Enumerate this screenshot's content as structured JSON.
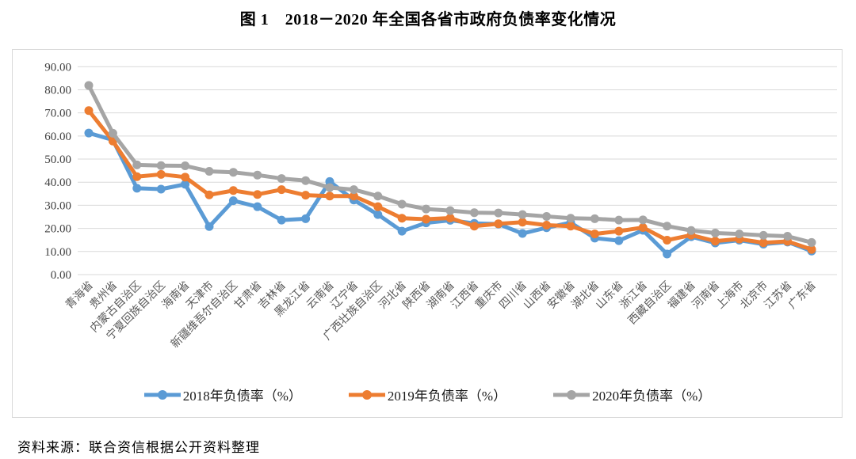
{
  "title": "图 1　2018－2020 年全国各省市政府负债率变化情况",
  "source_note": "资料来源：联合资信根据公开资料整理",
  "chart_data": {
    "type": "line",
    "title": "图 1　2018－2020 年全国各省市政府负债率变化情况",
    "xlabel": "",
    "ylabel": "",
    "ylim": [
      0,
      90
    ],
    "ytick_step": 10,
    "yticks": [
      90,
      80,
      70,
      60,
      50,
      40,
      30,
      20,
      10,
      0
    ],
    "ytick_labels": [
      "90.00",
      "80.00",
      "70.00",
      "60.00",
      "50.00",
      "40.00",
      "30.00",
      "20.00",
      "10.00",
      "0.00"
    ],
    "grid": "horizontal",
    "legend_position": "bottom",
    "marker": "circle",
    "categories": [
      "青海省",
      "贵州省",
      "内蒙古自治区",
      "宁夏回族自治区",
      "海南省",
      "天津市",
      "新疆维吾尔自治区",
      "甘肃省",
      "吉林省",
      "黑龙江省",
      "云南省",
      "辽宁省",
      "广西壮族自治区",
      "河北省",
      "陕西省",
      "湖南省",
      "江西省",
      "重庆市",
      "四川省",
      "山西省",
      "安徽省",
      "湖北省",
      "山东省",
      "浙江省",
      "西藏自治区",
      "福建省",
      "河南省",
      "上海市",
      "北京市",
      "江苏省",
      "广东省"
    ],
    "series": [
      {
        "name": "2018年负债率（%）",
        "color": "#5B9BD5",
        "values": [
          61.3,
          58.3,
          37.4,
          37.0,
          39.1,
          20.8,
          32.0,
          29.4,
          23.6,
          24.2,
          40.3,
          32.3,
          26.0,
          18.8,
          22.4,
          23.5,
          22.2,
          21.9,
          17.8,
          20.3,
          22.5,
          15.8,
          14.7,
          19.2,
          8.9,
          16.4,
          13.7,
          14.9,
          13.2,
          14.1,
          10.2
        ]
      },
      {
        "name": "2019年负债率（%）",
        "color": "#ED7D31",
        "values": [
          71.0,
          57.8,
          42.4,
          43.4,
          42.2,
          34.5,
          36.4,
          34.7,
          36.8,
          34.4,
          34.0,
          34.0,
          29.4,
          24.4,
          24.0,
          24.5,
          21.0,
          22.0,
          22.7,
          21.4,
          21.0,
          17.6,
          18.8,
          20.4,
          14.9,
          17.1,
          14.5,
          15.4,
          13.8,
          14.4,
          10.9
        ]
      },
      {
        "name": "2020年负债率（%）",
        "color": "#A5A5A5",
        "values": [
          81.9,
          61.2,
          47.5,
          47.2,
          47.1,
          44.7,
          44.3,
          43.1,
          41.6,
          40.7,
          37.7,
          36.8,
          34.0,
          30.5,
          28.4,
          27.7,
          26.8,
          26.7,
          26.0,
          25.2,
          24.4,
          24.2,
          23.6,
          23.7,
          21.0,
          19.1,
          18.0,
          17.6,
          17.0,
          16.6,
          13.9
        ]
      }
    ],
    "axis_label_color": "#595959",
    "gridline_color": "#d9d9d9"
  }
}
